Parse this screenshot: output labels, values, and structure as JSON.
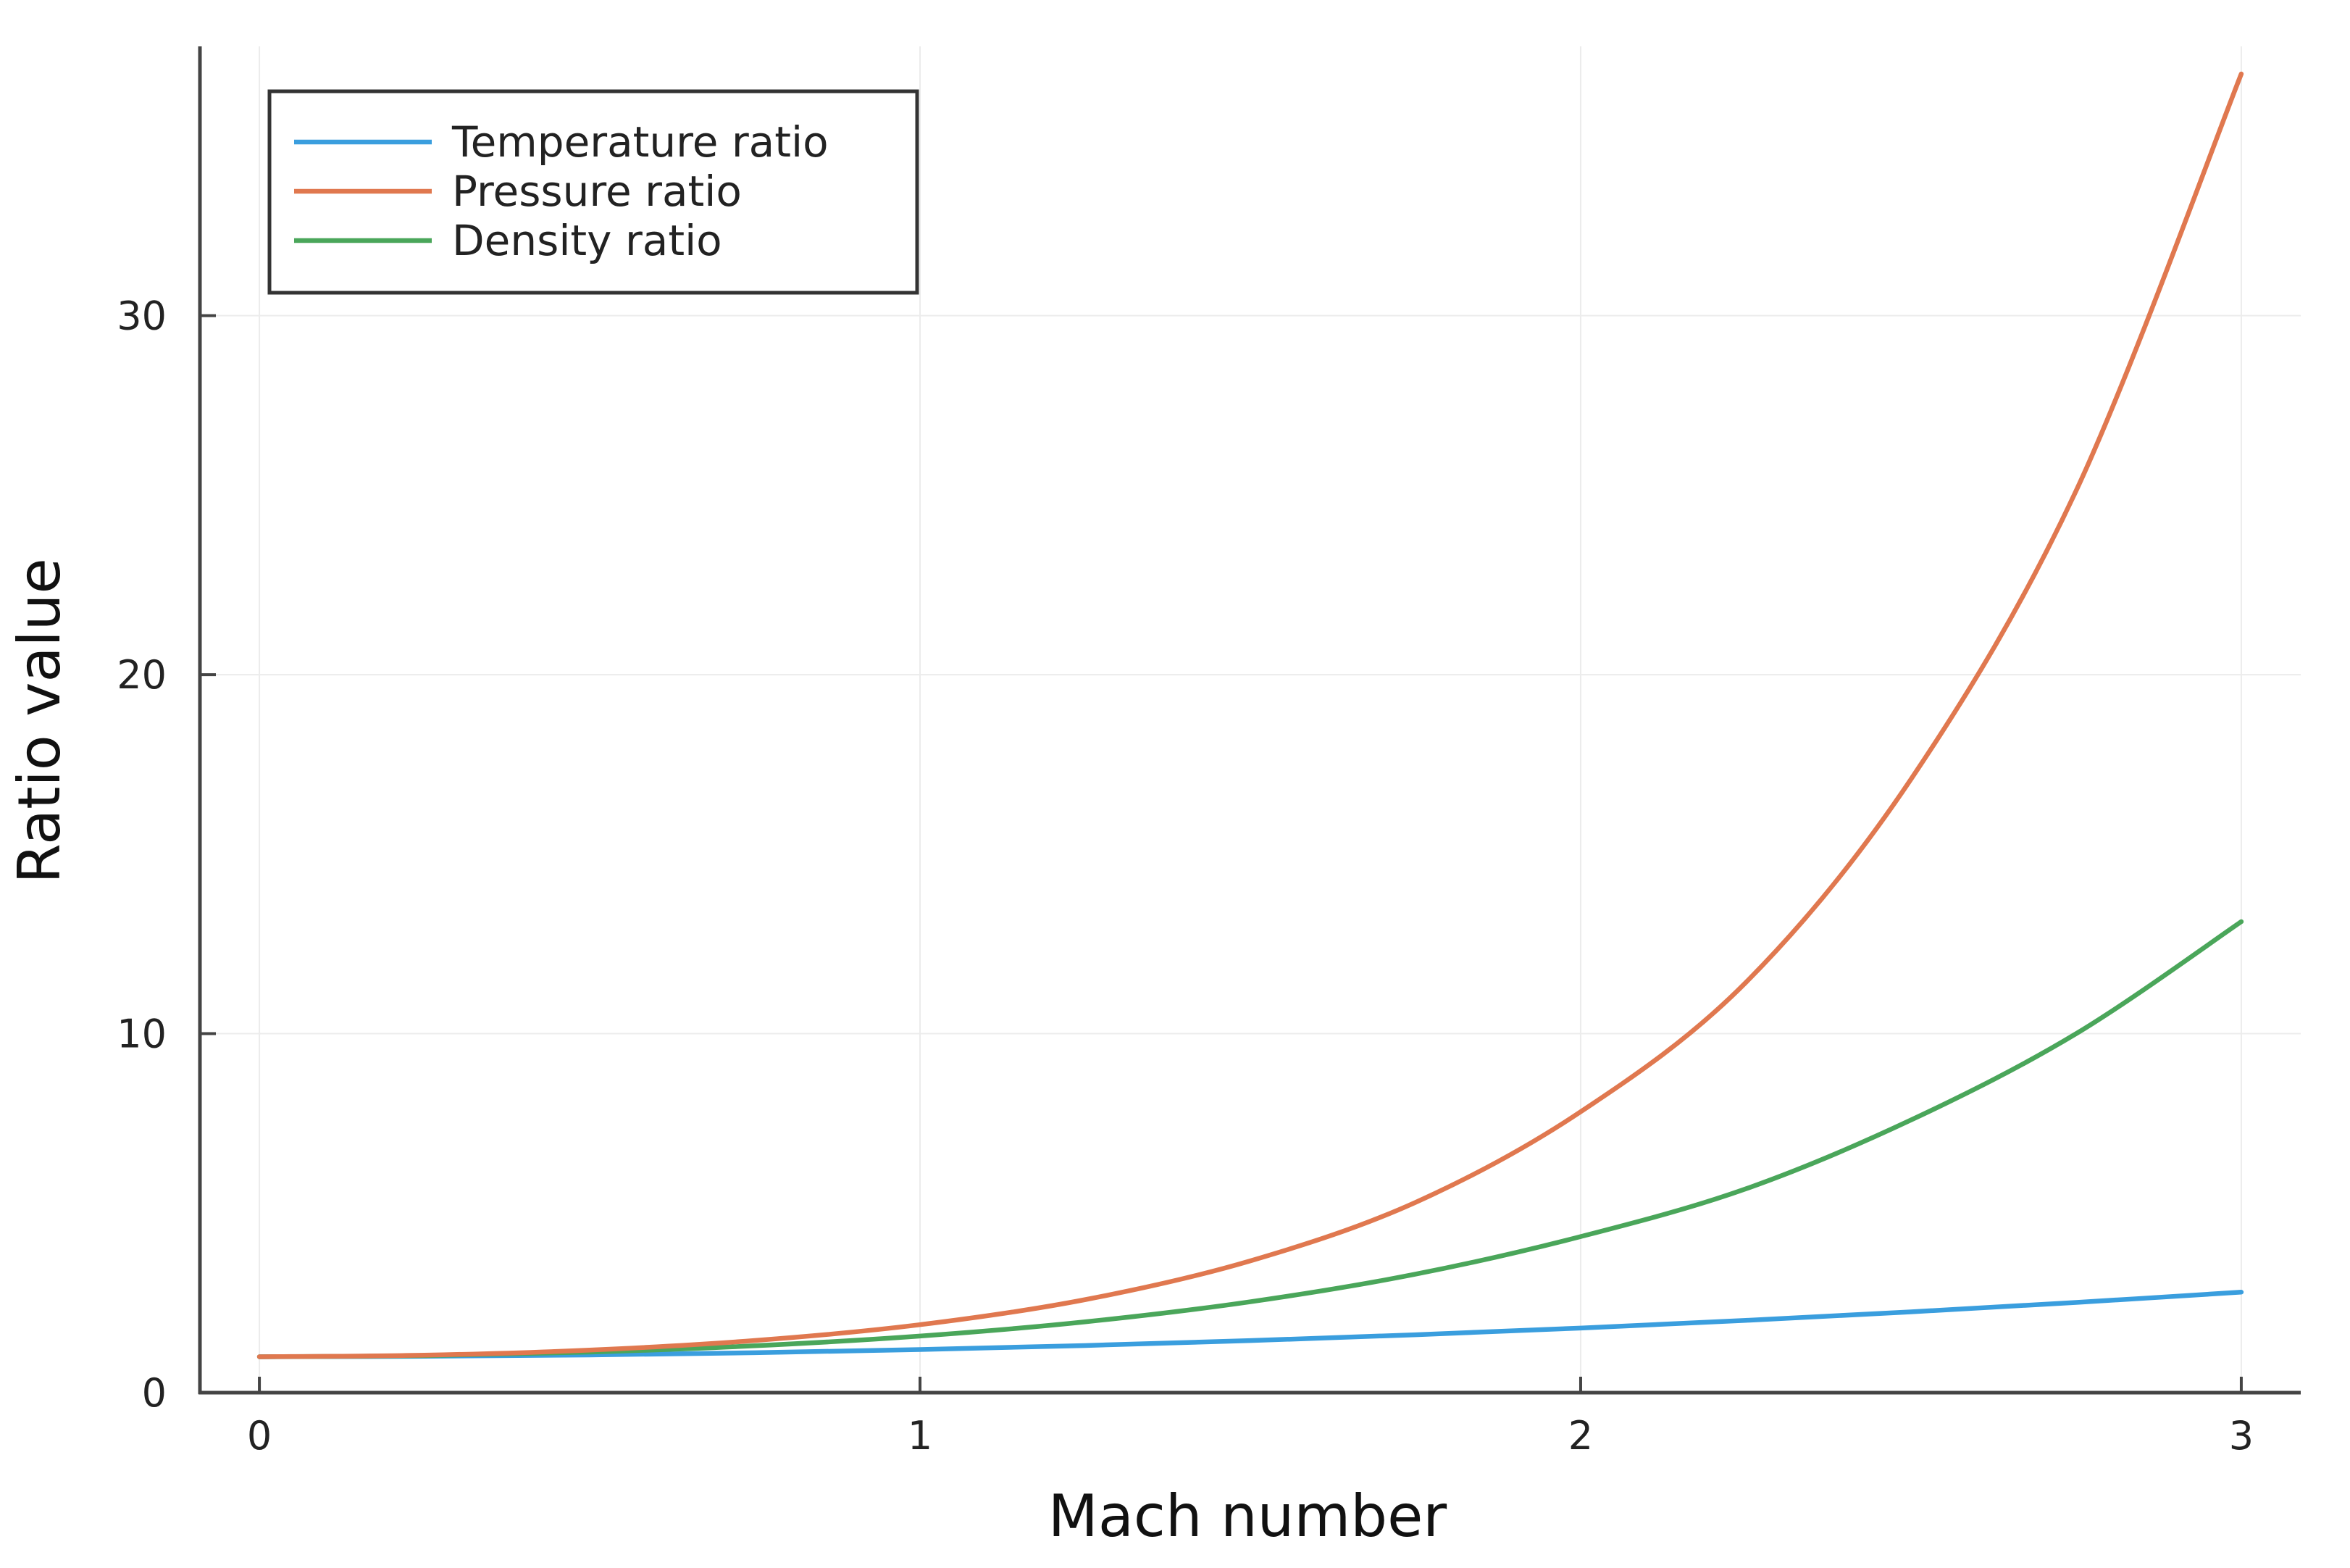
{
  "chart_data": {
    "type": "line",
    "title": "",
    "xlabel": "Mach number",
    "ylabel": "Ratio value",
    "xlim": [
      -0.09,
      3.09
    ],
    "ylim": [
      0,
      37.5
    ],
    "xticks": [
      0,
      1,
      2,
      3
    ],
    "yticks": [
      0,
      10,
      20,
      30
    ],
    "grid": true,
    "legend_position": "top-left",
    "x": [
      0,
      0.25,
      0.5,
      0.75,
      1.0,
      1.25,
      1.5,
      1.75,
      2.0,
      2.25,
      2.5,
      2.75,
      3.0
    ],
    "series": [
      {
        "name": "Temperature ratio",
        "color": "#3a9ede",
        "values": [
          1.0,
          1.013,
          1.05,
          1.113,
          1.2,
          1.313,
          1.45,
          1.613,
          1.8,
          2.013,
          2.25,
          2.513,
          2.8
        ]
      },
      {
        "name": "Pressure ratio",
        "color": "#e0784f",
        "values": [
          1.0,
          1.044,
          1.186,
          1.453,
          1.893,
          2.591,
          3.671,
          5.3,
          7.824,
          11.425,
          17.086,
          25.123,
          36.733
        ]
      },
      {
        "name": "Density ratio",
        "color": "#4aa65a",
        "values": [
          1.0,
          1.031,
          1.13,
          1.306,
          1.577,
          1.973,
          2.532,
          3.3,
          4.347,
          5.677,
          7.594,
          9.999,
          13.119
        ]
      }
    ]
  }
}
